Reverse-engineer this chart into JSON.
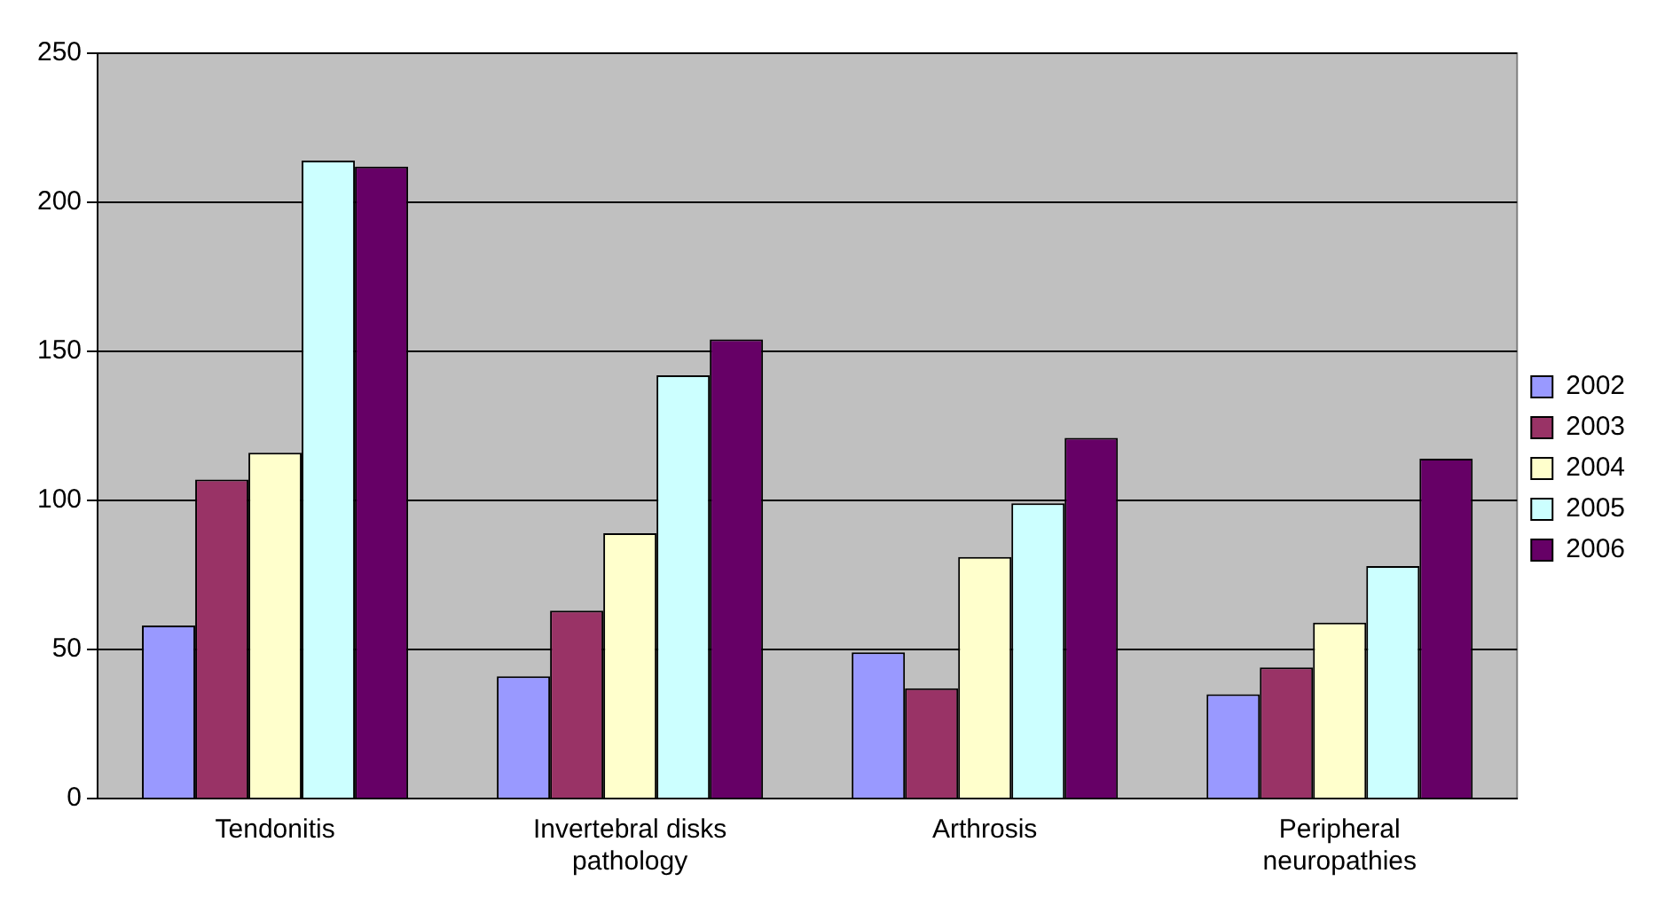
{
  "chart_data": {
    "type": "bar",
    "categories": [
      "Tendonitis",
      "Invertebral disks pathology",
      "Arthrosis",
      "Peripheral neuropathies"
    ],
    "series": [
      {
        "name": "2002",
        "color": "#9999ff",
        "values": [
          58,
          41,
          49,
          35
        ]
      },
      {
        "name": "2003",
        "color": "#993366",
        "values": [
          107,
          63,
          37,
          44
        ]
      },
      {
        "name": "2004",
        "color": "#ffffcc",
        "values": [
          116,
          89,
          81,
          59
        ]
      },
      {
        "name": "2005",
        "color": "#ccffff",
        "values": [
          214,
          142,
          99,
          78
        ]
      },
      {
        "name": "2006",
        "color": "#660066",
        "values": [
          212,
          154,
          121,
          114
        ]
      }
    ],
    "ylim": [
      0,
      250
    ],
    "yticks": [
      0,
      50,
      100,
      150,
      200,
      250
    ],
    "grid": "y",
    "legend": "right"
  }
}
